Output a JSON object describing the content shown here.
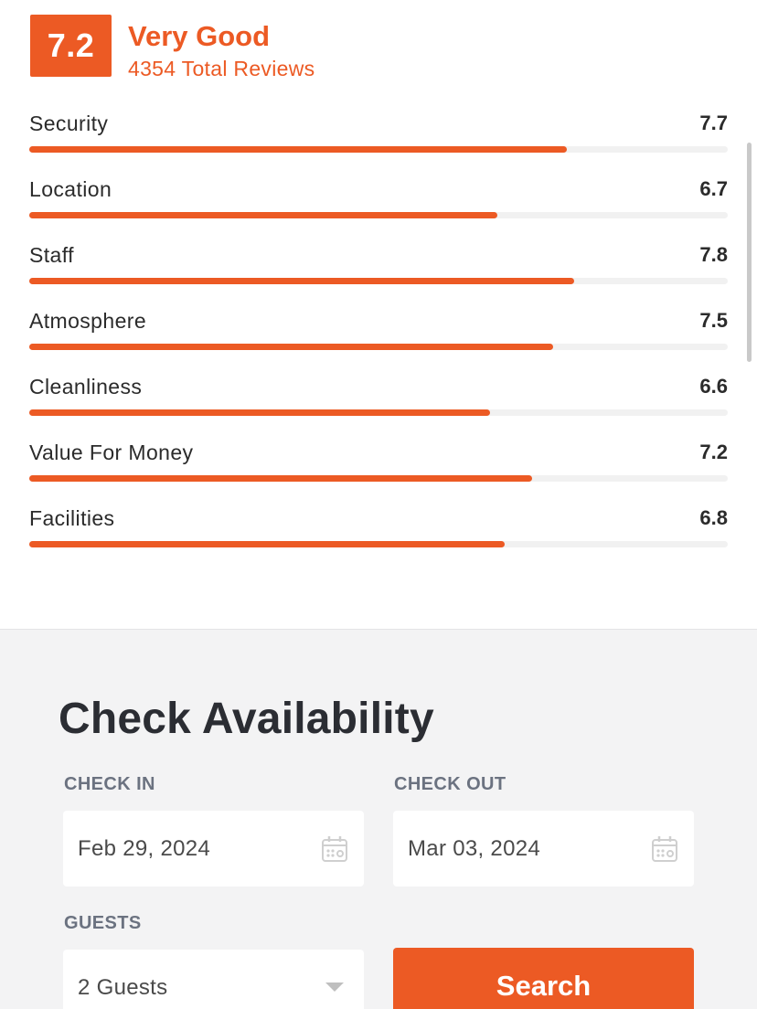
{
  "rating": {
    "score": "7.2",
    "word": "Very Good",
    "count": "4354 Total Reviews"
  },
  "categories": [
    {
      "name": "Security",
      "score": "7.7",
      "value": 7.7
    },
    {
      "name": "Location",
      "score": "6.7",
      "value": 6.7
    },
    {
      "name": "Staff",
      "score": "7.8",
      "value": 7.8
    },
    {
      "name": "Atmosphere",
      "score": "7.5",
      "value": 7.5
    },
    {
      "name": "Cleanliness",
      "score": "6.6",
      "value": 6.6
    },
    {
      "name": "Value For Money",
      "score": "7.2",
      "value": 7.2
    },
    {
      "name": "Facilities",
      "score": "6.8",
      "value": 6.8
    }
  ],
  "max_score": 10,
  "availability": {
    "title": "Check Availability",
    "check_in": {
      "label": "CHECK IN",
      "value": "Feb 29, 2024",
      "icon": "calendar-icon"
    },
    "check_out": {
      "label": "CHECK OUT",
      "value": "Mar 03, 2024",
      "icon": "calendar-icon"
    },
    "guests": {
      "label": "GUESTS",
      "value": "2 Guests",
      "icon": "chevron-down-icon"
    },
    "search_label": "Search"
  },
  "colors": {
    "accent": "#ec5a24",
    "text_dark": "#2b2d33",
    "label_gray": "#6b7280",
    "panel_bg": "#f3f3f4"
  }
}
